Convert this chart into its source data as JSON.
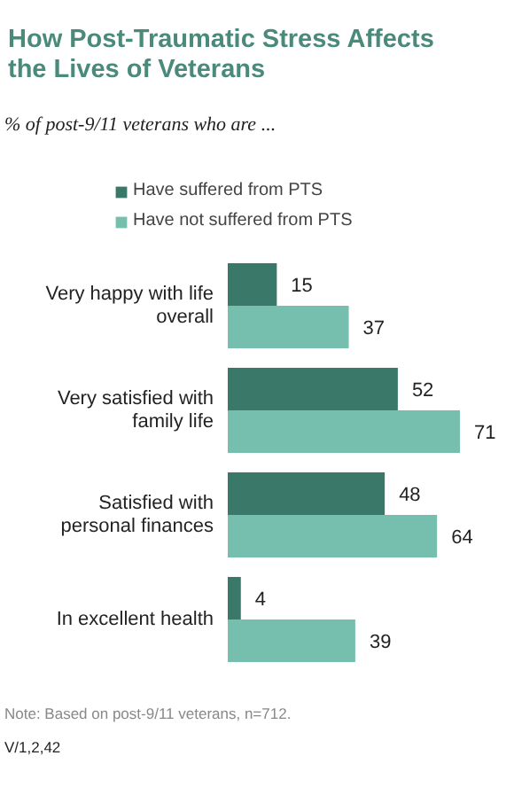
{
  "chart_data": {
    "type": "bar",
    "orientation": "horizontal",
    "title": "How Post-Traumatic Stress Affects the Lives of Veterans",
    "subtitle": "% of post-9/11 veterans who are ...",
    "categories": [
      "Very happy with life overall",
      "Very satisfied with family life",
      "Satisfied with personal finances",
      "In excellent health"
    ],
    "series": [
      {
        "name": "Have suffered from PTS",
        "color": "#3a7869",
        "values": [
          15,
          52,
          48,
          4
        ]
      },
      {
        "name": "Have not suffered from PTS",
        "color": "#76bfae",
        "values": [
          37,
          71,
          64,
          39
        ]
      }
    ],
    "data_labels": true,
    "legend": "top",
    "grid": false,
    "annotations": [
      "Note: Based on post-9/11 veterans, n=712.",
      "V/1,2,42"
    ]
  }
}
